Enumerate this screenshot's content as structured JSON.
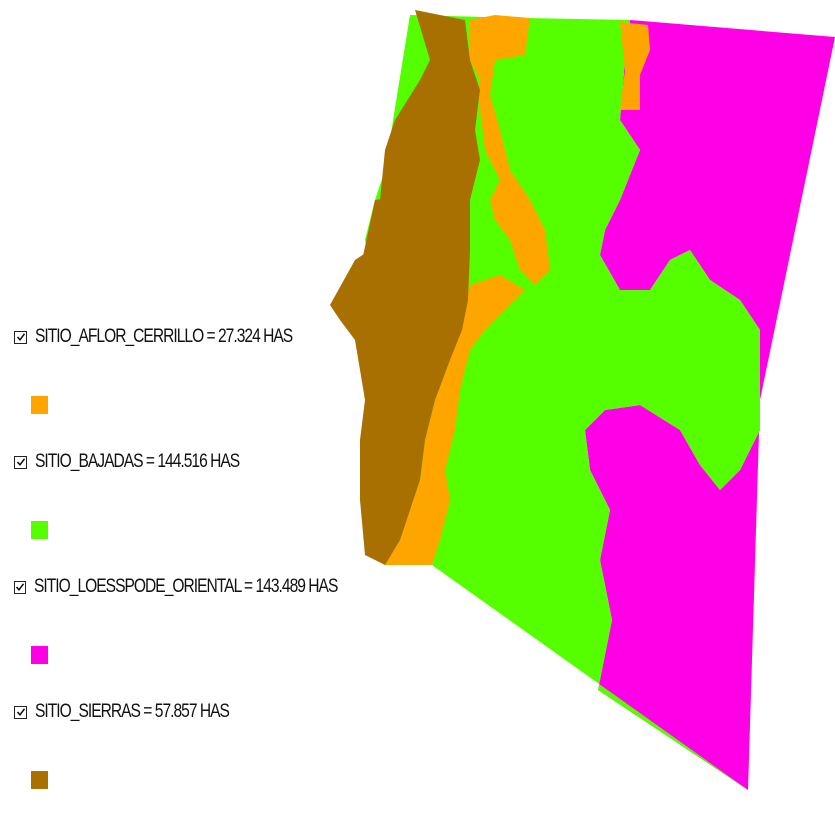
{
  "legend": {
    "items": [
      {
        "label": "SITIO_AFLOR_CERRILLO = 27.324 HAS",
        "color": "#ffa500",
        "checked": true
      },
      {
        "label": "SITIO_BAJADAS = 144.516 HAS",
        "color": "#55ff00",
        "checked": true
      },
      {
        "label": "SITIO_LOESSPODE_ORIENTAL = 143.489 HAS",
        "color": "#ff00e6",
        "checked": true
      },
      {
        "label": "SITIO_SIERRAS = 57.857 HAS",
        "color": "#a87000",
        "checked": true
      }
    ]
  },
  "map": {
    "layers": [
      {
        "name": "SITIO_LOESSPODE_ORIENTAL",
        "color": "#ff00e6"
      },
      {
        "name": "SITIO_BAJADAS",
        "color": "#55ff00"
      },
      {
        "name": "SITIO_AFLOR_CERRILLO",
        "color": "#ffa500"
      },
      {
        "name": "SITIO_SIERRAS",
        "color": "#a87000"
      }
    ]
  }
}
